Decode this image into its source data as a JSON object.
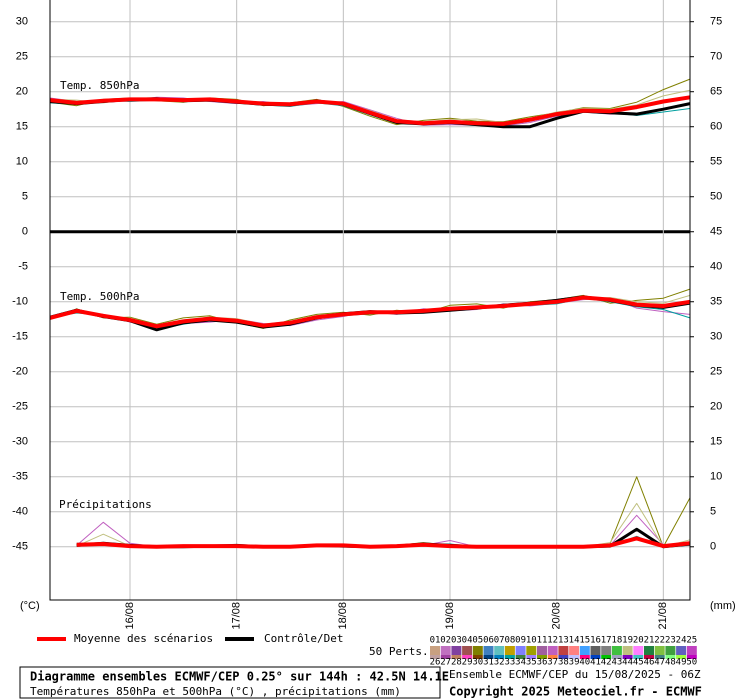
{
  "chart_data": {
    "type": "line",
    "title": "Diagramme ensembles ECMWF/CEP 0.25° sur 144h : 42.5N 14.1E",
    "subtitle": "Températures 850hPa et 500hPa (°C) , précipitations (mm)",
    "run_label": "Ensemble ECMWF/CEP du 15/08/2025 - 06Z",
    "copyright": "Copyright 2025 Meteociel.fr - ECMWF",
    "annotations": [
      "Temp. 850hPa",
      "Temp. 500hPa",
      "Précipitations"
    ],
    "ylabel": "(°C)",
    "y2label": "(mm)",
    "grid": true,
    "x": [
      0,
      6,
      12,
      18,
      24,
      30,
      36,
      42,
      48,
      54,
      60,
      66,
      72,
      78,
      84,
      90,
      96,
      102,
      108,
      114,
      120,
      126,
      132,
      138,
      144
    ],
    "xlim": [
      0,
      144
    ],
    "xticks": [
      {
        "value": 18,
        "label": "16/08"
      },
      {
        "value": 42,
        "label": "17/08"
      },
      {
        "value": 66,
        "label": "18/08"
      },
      {
        "value": 90,
        "label": "19/08"
      },
      {
        "value": 114,
        "label": "20/08"
      },
      {
        "value": 138,
        "label": "21/08"
      }
    ],
    "ylim": [
      -52.6,
      33.1
    ],
    "yticks": [
      30,
      25,
      20,
      15,
      10,
      5,
      0,
      -5,
      -10,
      -15,
      -20,
      -25,
      -30,
      -35,
      -40,
      -45
    ],
    "y2lim": [
      -7.6,
      78.1
    ],
    "y2ticks": [
      75,
      70,
      65,
      60,
      55,
      50,
      45,
      40,
      35,
      30,
      25,
      20,
      15,
      10,
      5,
      0
    ],
    "ensemble_label": "50 Perts.",
    "members": [
      {
        "name": "01",
        "color": "#c8a080"
      },
      {
        "name": "02",
        "color": "#c070c0"
      },
      {
        "name": "03",
        "color": "#8040a0"
      },
      {
        "name": "04",
        "color": "#a05050"
      },
      {
        "name": "05",
        "color": "#808000"
      },
      {
        "name": "06",
        "color": "#4080c0"
      },
      {
        "name": "07",
        "color": "#60c0c0"
      },
      {
        "name": "08",
        "color": "#c0a000"
      },
      {
        "name": "09",
        "color": "#8080ff"
      },
      {
        "name": "10",
        "color": "#a0a000"
      },
      {
        "name": "11",
        "color": "#a060a0"
      },
      {
        "name": "12",
        "color": "#c060c0"
      },
      {
        "name": "13",
        "color": "#c04040"
      },
      {
        "name": "14",
        "color": "#ff8080"
      },
      {
        "name": "15",
        "color": "#40a0ff"
      },
      {
        "name": "16",
        "color": "#606060"
      },
      {
        "name": "17",
        "color": "#808080"
      },
      {
        "name": "18",
        "color": "#40c040"
      },
      {
        "name": "19",
        "color": "#c0c080"
      },
      {
        "name": "20",
        "color": "#ff80ff"
      },
      {
        "name": "21",
        "color": "#208040"
      },
      {
        "name": "22",
        "color": "#80c040"
      },
      {
        "name": "23",
        "color": "#40a040"
      },
      {
        "name": "24",
        "color": "#6060c0"
      },
      {
        "name": "25",
        "color": "#c040c0"
      },
      {
        "name": "26",
        "color": "#c0a0a0"
      },
      {
        "name": "27",
        "color": "#a040a0"
      },
      {
        "name": "28",
        "color": "#c08060"
      },
      {
        "name": "29",
        "color": "#ff40c0"
      },
      {
        "name": "30",
        "color": "#804000"
      },
      {
        "name": "31",
        "color": "#004080"
      },
      {
        "name": "32",
        "color": "#0080c0"
      },
      {
        "name": "33",
        "color": "#00a0a0"
      },
      {
        "name": "34",
        "color": "#408040"
      },
      {
        "name": "35",
        "color": "#a080ff"
      },
      {
        "name": "36",
        "color": "#80a000"
      },
      {
        "name": "37",
        "color": "#ff8040"
      },
      {
        "name": "38",
        "color": "#4040c0"
      },
      {
        "name": "39",
        "color": "#c0c0ff"
      },
      {
        "name": "40",
        "color": "#ff0080"
      },
      {
        "name": "41",
        "color": "#0040c0"
      },
      {
        "name": "42",
        "color": "#00c000"
      },
      {
        "name": "43",
        "color": "#a0a0c0"
      },
      {
        "name": "44",
        "color": "#8000c0"
      },
      {
        "name": "45",
        "color": "#40c0c0"
      },
      {
        "name": "46",
        "color": "#c00040"
      },
      {
        "name": "47",
        "color": "#408080"
      },
      {
        "name": "48",
        "color": "#80ff80"
      },
      {
        "name": "49",
        "color": "#a0ff40"
      },
      {
        "name": "50",
        "color": "#c000c0"
      }
    ],
    "series": [
      {
        "name": "05",
        "color": "#808000",
        "linewidth": 1,
        "values": [
          18.5,
          18.0,
          18.9,
          19.1,
          18.7,
          18.5,
          19.1,
          18.9,
          18.0,
          18.4,
          18.9,
          17.9,
          16.5,
          15.3,
          15.9,
          16.2,
          15.8,
          15.7,
          16.4,
          17.0,
          17.7,
          17.6,
          18.5,
          20.3,
          21.8
        ]
      },
      {
        "name": "12",
        "color": "#c060c0",
        "linewidth": 1,
        "values": [
          19.1,
          18.6,
          18.5,
          18.7,
          19.2,
          19.1,
          18.6,
          18.3,
          18.6,
          18.0,
          18.3,
          18.6,
          17.4,
          16.2,
          15.2,
          15.3,
          15.2,
          15.1,
          15.6,
          16.5,
          17.1,
          16.8,
          16.9,
          17.6,
          18.4
        ]
      },
      {
        "name": "19",
        "color": "#c0c080",
        "linewidth": 1,
        "values": [
          18.9,
          18.8,
          18.4,
          19.0,
          19.0,
          18.6,
          19.0,
          18.7,
          18.3,
          18.3,
          18.7,
          18.4,
          17.3,
          16.0,
          15.7,
          16.0,
          16.1,
          15.6,
          16.2,
          17.1,
          17.6,
          17.5,
          18.1,
          19.4,
          20.2
        ]
      },
      {
        "name": "33",
        "color": "#00a0a0",
        "linewidth": 1,
        "values": [
          18.4,
          18.2,
          18.8,
          18.6,
          18.8,
          19.0,
          18.8,
          18.5,
          18.1,
          17.9,
          18.4,
          18.0,
          16.7,
          15.5,
          15.4,
          15.5,
          15.3,
          15.2,
          15.8,
          16.6,
          17.2,
          17.0,
          16.6,
          17.1,
          17.6
        ]
      },
      {
        "name": "Contrôle/Det",
        "color": "#000000",
        "linewidth": 3,
        "values": [
          18.6,
          18.3,
          18.6,
          18.9,
          19.0,
          18.7,
          18.8,
          18.5,
          18.2,
          18.1,
          18.7,
          18.2,
          16.9,
          15.6,
          15.4,
          15.6,
          15.3,
          15.0,
          15.0,
          16.2,
          17.2,
          17.0,
          16.8,
          17.5,
          18.3
        ]
      },
      {
        "name": "Moyenne des scénarios",
        "color": "#ff0000",
        "linewidth": 4,
        "values": [
          18.8,
          18.4,
          18.7,
          18.9,
          18.9,
          18.8,
          18.9,
          18.6,
          18.3,
          18.2,
          18.6,
          18.3,
          17.0,
          15.8,
          15.5,
          15.7,
          15.5,
          15.4,
          16.0,
          16.8,
          17.3,
          17.2,
          17.8,
          18.6,
          19.2
        ]
      },
      {
        "name": "05",
        "color": "#808000",
        "linewidth": 1,
        "values": [
          -12.5,
          -11.0,
          -12.3,
          -12.2,
          -13.2,
          -12.3,
          -12.0,
          -13.0,
          -13.8,
          -12.6,
          -11.8,
          -11.5,
          -11.9,
          -11.2,
          -11.6,
          -10.5,
          -10.3,
          -10.9,
          -10.0,
          -9.7,
          -9.1,
          -10.2,
          -9.8,
          -9.5,
          -8.2
        ]
      },
      {
        "name": "12",
        "color": "#c060c0",
        "linewidth": 1,
        "values": [
          -12.1,
          -11.5,
          -11.8,
          -12.9,
          -13.6,
          -13.1,
          -12.9,
          -12.5,
          -13.1,
          -13.4,
          -12.6,
          -12.1,
          -11.3,
          -11.8,
          -11.0,
          -11.3,
          -11.1,
          -10.3,
          -10.6,
          -10.2,
          -9.7,
          -9.5,
          -10.9,
          -11.4,
          -11.8
        ]
      },
      {
        "name": "19",
        "color": "#c0c080",
        "linewidth": 1,
        "values": [
          -12.4,
          -11.4,
          -12.2,
          -12.4,
          -13.3,
          -12.6,
          -12.2,
          -12.4,
          -13.2,
          -12.8,
          -12.0,
          -11.6,
          -11.6,
          -11.4,
          -11.2,
          -10.8,
          -10.6,
          -10.8,
          -10.4,
          -10.1,
          -9.6,
          -9.4,
          -10.0,
          -10.2,
          -9.1
        ]
      },
      {
        "name": "33",
        "color": "#00a0a0",
        "linewidth": 1,
        "values": [
          -12.2,
          -11.6,
          -11.9,
          -12.7,
          -13.9,
          -13.2,
          -12.6,
          -12.8,
          -13.5,
          -13.1,
          -12.4,
          -12.0,
          -11.7,
          -11.6,
          -11.4,
          -11.1,
          -11.0,
          -10.4,
          -10.5,
          -10.3,
          -9.5,
          -10.0,
          -10.7,
          -11.1,
          -12.3
        ]
      },
      {
        "name": "Contrôle/Det",
        "color": "#000000",
        "linewidth": 3,
        "values": [
          -12.2,
          -11.2,
          -12.1,
          -12.7,
          -14.0,
          -13.0,
          -12.6,
          -12.9,
          -13.6,
          -13.2,
          -12.3,
          -11.7,
          -11.4,
          -11.6,
          -11.5,
          -11.2,
          -10.9,
          -10.5,
          -10.2,
          -9.8,
          -9.3,
          -9.8,
          -10.5,
          -10.8,
          -10.2
        ]
      },
      {
        "name": "Moyenne des scénarios",
        "color": "#ff0000",
        "linewidth": 4,
        "values": [
          -12.3,
          -11.3,
          -12.0,
          -12.6,
          -13.5,
          -12.8,
          -12.4,
          -12.7,
          -13.4,
          -13.0,
          -12.2,
          -11.8,
          -11.5,
          -11.5,
          -11.3,
          -11.0,
          -10.8,
          -10.6,
          -10.3,
          -10.0,
          -9.4,
          -9.7,
          -10.4,
          -10.6,
          -10.0
        ]
      },
      {
        "name": "05",
        "color": "#808000",
        "linewidth": 1,
        "axis": "y2",
        "values": [
          null,
          0.4,
          0.6,
          0.3,
          0,
          0.2,
          0.1,
          0,
          0,
          0.1,
          0.3,
          0.2,
          0,
          0.2,
          0.6,
          0.2,
          0,
          0,
          0.1,
          0,
          0,
          0.4,
          10.0,
          0,
          7.0
        ]
      },
      {
        "name": "12",
        "color": "#c060c0",
        "linewidth": 1,
        "axis": "y2",
        "values": [
          null,
          0.2,
          3.5,
          0.5,
          0,
          0,
          0.2,
          0.1,
          0,
          0,
          0.1,
          0.4,
          0,
          0,
          0.2,
          0.9,
          0,
          0,
          0,
          0,
          0,
          0.2,
          4.5,
          0.3,
          0.2
        ]
      },
      {
        "name": "19",
        "color": "#c0c080",
        "linewidth": 1,
        "axis": "y2",
        "values": [
          null,
          0.1,
          1.8,
          0.1,
          0,
          0.1,
          0,
          0.3,
          0,
          0,
          0.2,
          0.1,
          0,
          0.1,
          0.5,
          0.1,
          0,
          0,
          0,
          0.1,
          0,
          0.6,
          6.2,
          0,
          1.0
        ]
      },
      {
        "name": "33",
        "color": "#00a0a0",
        "linewidth": 1,
        "axis": "y2",
        "values": [
          null,
          0.5,
          0.3,
          0.2,
          0,
          0,
          0.1,
          0.2,
          0,
          0,
          0.4,
          0.3,
          0,
          0.1,
          0.3,
          0.4,
          0,
          0,
          0,
          0,
          0,
          0.1,
          1.5,
          0,
          0.2
        ]
      },
      {
        "name": "Contrôle/Det",
        "color": "#000000",
        "linewidth": 3,
        "axis": "y2",
        "values": [
          null,
          0.2,
          0.5,
          0.2,
          0,
          0,
          0.1,
          0.2,
          0,
          0,
          0.2,
          0.1,
          0,
          0.1,
          0.4,
          0.2,
          0,
          0,
          0,
          0,
          0,
          0.1,
          2.5,
          0,
          0.4
        ]
      },
      {
        "name": "Moyenne des scénarios",
        "color": "#ff0000",
        "linewidth": 4,
        "axis": "y2",
        "values": [
          null,
          0.3,
          0.4,
          0.1,
          0,
          0.1,
          0.1,
          0.1,
          0,
          0,
          0.2,
          0.2,
          0,
          0.1,
          0.3,
          0.1,
          0,
          0,
          0,
          0,
          0,
          0.2,
          1.2,
          0.1,
          0.5
        ]
      }
    ]
  }
}
